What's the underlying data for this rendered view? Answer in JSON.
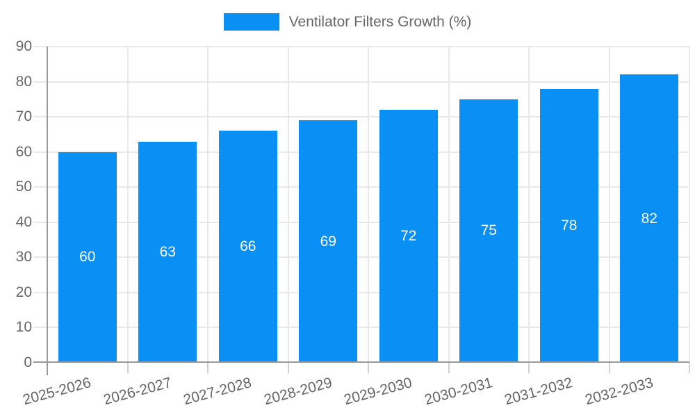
{
  "legend": {
    "label": "Ventilator Filters Growth (%)"
  },
  "colors": {
    "bar": "#0a90f4",
    "grid": "#e8e8e8",
    "axis": "#9a9a9a",
    "bottom_tick": "#cfcfcf",
    "tick_text": "#666666",
    "value_text": "#ffffff",
    "background": "#ffffff"
  },
  "chart_data": {
    "type": "bar",
    "series_name": "Ventilator Filters Growth (%)",
    "categories": [
      "2025-2026",
      "2026-2027",
      "2027-2028",
      "2028-2029",
      "2029-2030",
      "2030-2031",
      "2031-2032",
      "2032-2033"
    ],
    "values": [
      60,
      63,
      66,
      69,
      72,
      75,
      78,
      82
    ],
    "value_labels": [
      "60",
      "63",
      "66",
      "69",
      "72",
      "75",
      "78",
      "82"
    ],
    "yticks": [
      90,
      80,
      70,
      60,
      50,
      40,
      30,
      20,
      10,
      0
    ],
    "ylim": [
      0,
      90
    ],
    "ytick_step": 10,
    "grid": true,
    "legend_position": "top",
    "value_label_position": "inside-center",
    "xlabel": "",
    "ylabel": ""
  }
}
